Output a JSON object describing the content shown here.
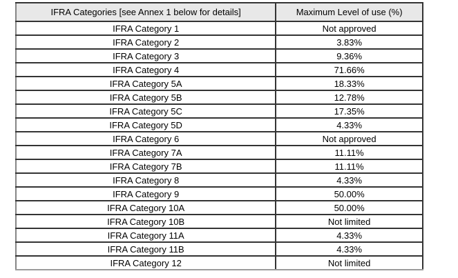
{
  "table": {
    "headers": {
      "categories": "IFRA Categories [see Annex 1 below for details]",
      "max_level": "Maximum Level of use (%)"
    },
    "rows": [
      {
        "category": "IFRA Category 1",
        "max_level": "Not approved"
      },
      {
        "category": "IFRA Category 2",
        "max_level": "3.83%"
      },
      {
        "category": "IFRA Category 3",
        "max_level": "9.36%"
      },
      {
        "category": "IFRA Category 4",
        "max_level": "71.66%"
      },
      {
        "category": "IFRA Category 5A",
        "max_level": "18.33%"
      },
      {
        "category": "IFRA Category 5B",
        "max_level": "12.78%"
      },
      {
        "category": "IFRA Category 5C",
        "max_level": "17.35%"
      },
      {
        "category": "IFRA Category 5D",
        "max_level": "4.33%"
      },
      {
        "category": "IFRA Category 6",
        "max_level": "Not approved"
      },
      {
        "category": "IFRA Category 7A",
        "max_level": "11.11%"
      },
      {
        "category": "IFRA Category 7B",
        "max_level": "11.11%"
      },
      {
        "category": "IFRA Category 8",
        "max_level": "4.33%"
      },
      {
        "category": "IFRA Category 9",
        "max_level": "50.00%"
      },
      {
        "category": "IFRA Category 10A",
        "max_level": "50.00%"
      },
      {
        "category": "IFRA Category 10B",
        "max_level": "Not limited"
      },
      {
        "category": "IFRA Category 11A",
        "max_level": "4.33%"
      },
      {
        "category": "IFRA Category 11B",
        "max_level": "4.33%"
      },
      {
        "category": "IFRA Category 12",
        "max_level": "Not limited"
      }
    ]
  },
  "colors": {
    "page_bg": "#ffffff",
    "header_bg": "#e8e8e8",
    "row_bg": "#ffffff",
    "border_inner": "#333333",
    "border_outer_left": "#858585",
    "border_outer_bottom": "#9b9b9b",
    "text": "#000000"
  }
}
